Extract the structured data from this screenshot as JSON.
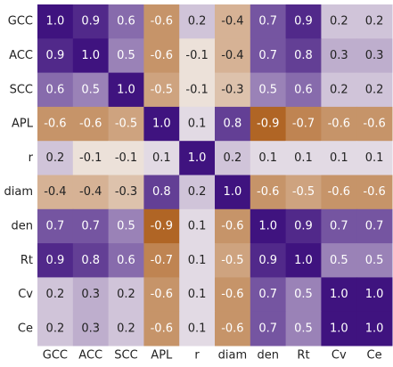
{
  "chart_data": {
    "type": "heatmap",
    "categories": [
      "GCC",
      "ACC",
      "SCC",
      "APL",
      "r",
      "diam",
      "den",
      "Rt",
      "Cv",
      "Ce"
    ],
    "values": [
      [
        1.0,
        0.9,
        0.6,
        -0.6,
        0.2,
        -0.4,
        0.7,
        0.9,
        0.2,
        0.2
      ],
      [
        0.9,
        1.0,
        0.5,
        -0.6,
        -0.1,
        -0.4,
        0.7,
        0.8,
        0.3,
        0.3
      ],
      [
        0.6,
        0.5,
        1.0,
        -0.5,
        -0.1,
        -0.3,
        0.5,
        0.6,
        0.2,
        0.2
      ],
      [
        -0.6,
        -0.6,
        -0.5,
        1.0,
        0.1,
        0.8,
        -0.9,
        -0.7,
        -0.6,
        -0.6
      ],
      [
        0.2,
        -0.1,
        -0.1,
        0.1,
        1.0,
        0.2,
        0.1,
        0.1,
        0.1,
        0.1
      ],
      [
        -0.4,
        -0.4,
        -0.3,
        0.8,
        0.2,
        1.0,
        -0.6,
        -0.5,
        -0.6,
        -0.6
      ],
      [
        0.7,
        0.7,
        0.5,
        -0.9,
        0.1,
        -0.6,
        1.0,
        0.9,
        0.7,
        0.7
      ],
      [
        0.9,
        0.8,
        0.6,
        -0.7,
        0.1,
        -0.5,
        0.9,
        1.0,
        0.5,
        0.5
      ],
      [
        0.2,
        0.3,
        0.2,
        -0.6,
        0.1,
        -0.6,
        0.7,
        0.5,
        1.0,
        1.0
      ],
      [
        0.2,
        0.3,
        0.2,
        -0.6,
        0.1,
        -0.6,
        0.7,
        0.5,
        1.0,
        1.0
      ]
    ],
    "value_labels": [
      [
        "1.0",
        "0.9",
        "0.6",
        "-0.6",
        "0.2",
        "-0.4",
        "0.7",
        "0.9",
        "0.2",
        "0.2"
      ],
      [
        "0.9",
        "1.0",
        "0.5",
        "-0.6",
        "-0.1",
        "-0.4",
        "0.7",
        "0.8",
        "0.3",
        "0.3"
      ],
      [
        "0.6",
        "0.5",
        "1.0",
        "-0.5",
        "-0.1",
        "-0.3",
        "0.5",
        "0.6",
        "0.2",
        "0.2"
      ],
      [
        "-0.6",
        "-0.6",
        "-0.5",
        "1.0",
        "0.1",
        "0.8",
        "-0.9",
        "-0.7",
        "-0.6",
        "-0.6"
      ],
      [
        "0.2",
        "-0.1",
        "-0.1",
        "0.1",
        "1.0",
        "0.2",
        "0.1",
        "0.1",
        "0.1",
        "0.1"
      ],
      [
        "-0.4",
        "-0.4",
        "-0.3",
        "0.8",
        "0.2",
        "1.0",
        "-0.6",
        "-0.5",
        "-0.6",
        "-0.6"
      ],
      [
        "0.7",
        "0.7",
        "0.5",
        "-0.9",
        "0.1",
        "-0.6",
        "1.0",
        "0.9",
        "0.7",
        "0.7"
      ],
      [
        "0.9",
        "0.8",
        "0.6",
        "-0.7",
        "0.1",
        "-0.5",
        "0.9",
        "1.0",
        "0.5",
        "0.5"
      ],
      [
        "0.2",
        "0.3",
        "0.2",
        "-0.6",
        "0.1",
        "-0.6",
        "0.7",
        "0.5",
        "1.0",
        "1.0"
      ],
      [
        "0.2",
        "0.3",
        "0.2",
        "-0.6",
        "0.1",
        "-0.6",
        "0.7",
        "0.5",
        "1.0",
        "1.0"
      ]
    ],
    "clim": [
      -1,
      1
    ],
    "colors": [
      "#a8560f",
      "#f4f0ef",
      "#3f137f"
    ]
  }
}
